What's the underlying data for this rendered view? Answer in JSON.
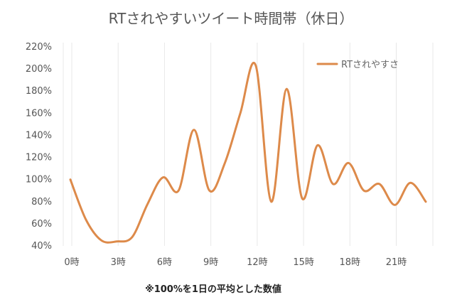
{
  "chart_data": {
    "type": "line",
    "title": "RTされやすいツイート時間帯（休日）",
    "xlabel": "",
    "ylabel": "",
    "x_tick_labels": [
      "0時",
      "3時",
      "6時",
      "9時",
      "12時",
      "15時",
      "18時",
      "21時"
    ],
    "x_ticks": [
      0,
      3,
      6,
      9,
      12,
      15,
      18,
      21
    ],
    "xlim": [
      0,
      23
    ],
    "y_tick_labels": [
      "40%",
      "60%",
      "80%",
      "100%",
      "120%",
      "140%",
      "160%",
      "180%",
      "200%",
      "220%"
    ],
    "y_ticks": [
      40,
      60,
      80,
      100,
      120,
      140,
      160,
      180,
      200,
      220
    ],
    "ylim": [
      40,
      220
    ],
    "grid": "vertical",
    "legend_position": "top-right",
    "series": [
      {
        "name": "RTされやすさ",
        "color": "#DD8A4A",
        "x": [
          0,
          1,
          2,
          3,
          4,
          5,
          6,
          7,
          8,
          9,
          10,
          11,
          12,
          13,
          14,
          15,
          16,
          17,
          18,
          19,
          20,
          21,
          22,
          23
        ],
        "values": [
          100,
          64,
          45,
          44,
          48,
          78,
          102,
          90,
          145,
          90,
          115,
          160,
          203,
          80,
          182,
          83,
          131,
          96,
          115,
          90,
          96,
          77,
          97,
          80
        ]
      }
    ],
    "footnote": "※100%を1日の平均とした数値"
  }
}
